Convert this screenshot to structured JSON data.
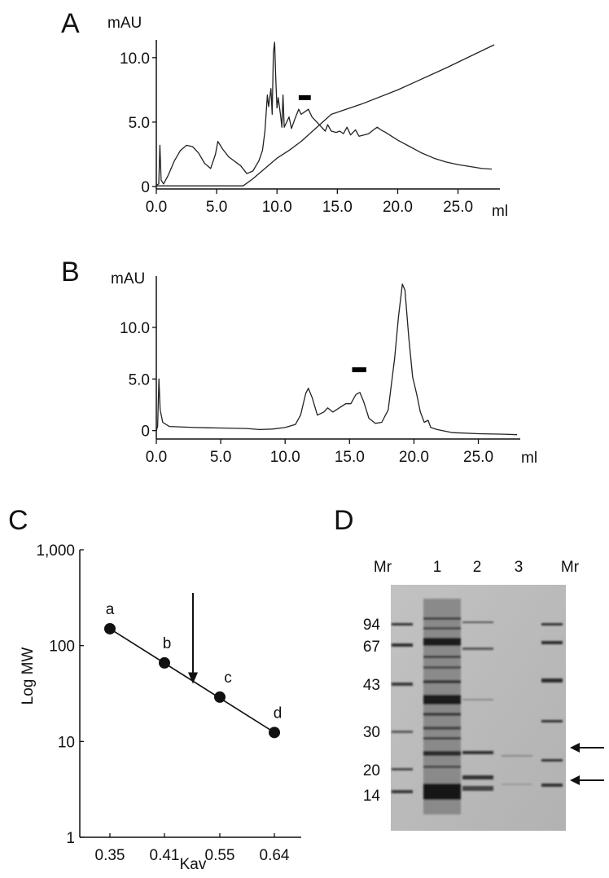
{
  "colors": {
    "ink": "#111111",
    "gel_bg": "#b9b9b9",
    "band": "#2a2a2a"
  },
  "chart_data": [
    {
      "panel": "A",
      "type": "line",
      "ylabel": "mAU",
      "xlabel": "ml",
      "xlim": [
        0,
        28.2
      ],
      "ylim": [
        0,
        11
      ],
      "x_ticks": [
        0,
        5,
        10,
        15,
        20,
        25
      ],
      "x_tick_labels": [
        "0.0",
        "5.0",
        "10.0",
        "15.0",
        "20.0",
        "25.0"
      ],
      "y_ticks": [
        0,
        5,
        10
      ],
      "y_tick_labels": [
        "0",
        "5.0",
        "10.0"
      ],
      "fraction_marker_x": [
        11.8,
        12.8
      ],
      "fraction_marker_y": 6.9,
      "series": [
        {
          "name": "absorbance",
          "points": [
            [
              0,
              0.1
            ],
            [
              0.2,
              0.2
            ],
            [
              0.3,
              3.2
            ],
            [
              0.4,
              0.5
            ],
            [
              0.6,
              0.2
            ],
            [
              1,
              0.9
            ],
            [
              1.5,
              2
            ],
            [
              2,
              2.8
            ],
            [
              2.5,
              3.2
            ],
            [
              3,
              3.1
            ],
            [
              3.5,
              2.6
            ],
            [
              4,
              1.8
            ],
            [
              4.5,
              1.4
            ],
            [
              4.9,
              2.5
            ],
            [
              5.1,
              3.5
            ],
            [
              5.5,
              2.9
            ],
            [
              6,
              2.3
            ],
            [
              7,
              1.6
            ],
            [
              7.5,
              1.0
            ],
            [
              8,
              1.2
            ],
            [
              8.5,
              2
            ],
            [
              8.8,
              2.8
            ],
            [
              9.0,
              4.3
            ],
            [
              9.2,
              7.1
            ],
            [
              9.3,
              6.2
            ],
            [
              9.5,
              7.6
            ],
            [
              9.6,
              5.6
            ],
            [
              9.7,
              10.4
            ],
            [
              9.8,
              11.2
            ],
            [
              9.9,
              8.4
            ],
            [
              10.0,
              6.1
            ],
            [
              10.1,
              6.9
            ],
            [
              10.3,
              5.5
            ],
            [
              10.4,
              4.6
            ],
            [
              10.5,
              7.1
            ],
            [
              10.6,
              4.6
            ],
            [
              10.8,
              5.0
            ],
            [
              11.0,
              5.4
            ],
            [
              11.2,
              4.5
            ],
            [
              11.5,
              5.3
            ],
            [
              11.8,
              6.0
            ],
            [
              12.0,
              5.6
            ],
            [
              12.3,
              5.8
            ],
            [
              12.6,
              6.0
            ],
            [
              12.9,
              5.4
            ],
            [
              13.3,
              5.0
            ],
            [
              13.6,
              4.7
            ],
            [
              14.0,
              4.3
            ],
            [
              14.2,
              4.8
            ],
            [
              14.5,
              4.3
            ],
            [
              14.9,
              4.2
            ],
            [
              15.2,
              4.3
            ],
            [
              15.5,
              4.1
            ],
            [
              15.8,
              4.6
            ],
            [
              16.1,
              4.0
            ],
            [
              16.5,
              4.4
            ],
            [
              16.8,
              3.9
            ],
            [
              17.2,
              4.0
            ],
            [
              17.6,
              4.1
            ],
            [
              18.0,
              4.4
            ],
            [
              18.3,
              4.6
            ],
            [
              18.6,
              4.4
            ],
            [
              19,
              4.2
            ],
            [
              20,
              3.6
            ],
            [
              21,
              3.1
            ],
            [
              22,
              2.6
            ],
            [
              23,
              2.2
            ],
            [
              24,
              1.9
            ],
            [
              25,
              1.7
            ],
            [
              26,
              1.55
            ],
            [
              27,
              1.4
            ],
            [
              27.8,
              1.35
            ]
          ]
        },
        {
          "name": "gradient",
          "points": [
            [
              0,
              0.05
            ],
            [
              7.2,
              0.05
            ],
            [
              8.0,
              0.6
            ],
            [
              9.0,
              1.4
            ],
            [
              10.0,
              2.2
            ],
            [
              11.0,
              2.8
            ],
            [
              12.0,
              3.5
            ],
            [
              14.5,
              5.6
            ],
            [
              17.0,
              6.4
            ],
            [
              20.0,
              7.5
            ],
            [
              24.0,
              9.2
            ],
            [
              28.0,
              11.0
            ]
          ]
        }
      ]
    },
    {
      "panel": "B",
      "type": "line",
      "ylabel": "mAU",
      "xlabel": "ml",
      "xlim": [
        0,
        28
      ],
      "ylim": [
        -0.5,
        14.5
      ],
      "x_ticks": [
        0,
        5,
        10,
        15,
        20,
        25
      ],
      "x_tick_labels": [
        "0.0",
        "5.0",
        "10.0",
        "15.0",
        "20.0",
        "25.0"
      ],
      "y_ticks": [
        0,
        5,
        10
      ],
      "y_tick_labels": [
        "0",
        "5.0",
        "10.0"
      ],
      "fraction_marker_x": [
        15.2,
        16.3
      ],
      "fraction_marker_y": 5.9,
      "series": [
        {
          "name": "absorbance",
          "points": [
            [
              0,
              0
            ],
            [
              0.1,
              0.4
            ],
            [
              0.2,
              5.0
            ],
            [
              0.3,
              2.0
            ],
            [
              0.5,
              0.8
            ],
            [
              1,
              0.4
            ],
            [
              3,
              0.3
            ],
            [
              5,
              0.25
            ],
            [
              7,
              0.2
            ],
            [
              8,
              0.1
            ],
            [
              9,
              0.15
            ],
            [
              10,
              0.3
            ],
            [
              10.8,
              0.6
            ],
            [
              11.2,
              1.5
            ],
            [
              11.6,
              3.6
            ],
            [
              11.8,
              4.1
            ],
            [
              12.1,
              3.2
            ],
            [
              12.5,
              1.5
            ],
            [
              13.0,
              1.8
            ],
            [
              13.3,
              2.2
            ],
            [
              13.7,
              1.8
            ],
            [
              14.2,
              2.2
            ],
            [
              14.7,
              2.6
            ],
            [
              15.1,
              2.6
            ],
            [
              15.5,
              3.5
            ],
            [
              15.8,
              3.7
            ],
            [
              16.1,
              2.8
            ],
            [
              16.5,
              1.2
            ],
            [
              17.0,
              0.7
            ],
            [
              17.5,
              0.8
            ],
            [
              18.0,
              2.0
            ],
            [
              18.5,
              7.0
            ],
            [
              18.8,
              11.0
            ],
            [
              19.1,
              14.2
            ],
            [
              19.3,
              13.6
            ],
            [
              19.6,
              9.0
            ],
            [
              19.9,
              5.2
            ],
            [
              20.2,
              3.6
            ],
            [
              20.5,
              1.8
            ],
            [
              20.8,
              0.8
            ],
            [
              21.1,
              1.0
            ],
            [
              21.3,
              0.3
            ],
            [
              21.8,
              0.1
            ],
            [
              23,
              -0.2
            ],
            [
              25,
              -0.3
            ],
            [
              27,
              -0.35
            ],
            [
              28,
              -0.4
            ]
          ]
        }
      ]
    },
    {
      "panel": "C",
      "type": "scatter",
      "ylabel": "Log MW",
      "xlabel": "Kav",
      "yscale": "log",
      "ylim": [
        1,
        1000
      ],
      "y_ticks": [
        1,
        10,
        100,
        1000
      ],
      "y_tick_labels": [
        "1",
        "10",
        "100",
        "1,000"
      ],
      "x_tick_labels": [
        "0.35",
        "0.41",
        "0.55",
        "0.64"
      ],
      "points": [
        {
          "label": "a",
          "kav": "0.35",
          "mw": 150
        },
        {
          "label": "b",
          "kav": "0.41",
          "mw": 66
        },
        {
          "label": "c",
          "kav": "0.55",
          "mw": 29
        },
        {
          "label": "d",
          "kav": "0.64",
          "mw": 12.4
        }
      ],
      "arrow_mw": 45
    }
  ],
  "panels": {
    "A": {
      "letter": "A"
    },
    "B": {
      "letter": "B"
    },
    "C": {
      "letter": "C"
    },
    "D": {
      "letter": "D",
      "lane_labels": [
        "Mr",
        "1",
        "2",
        "3",
        "Mr"
      ],
      "mw_labels": [
        "94",
        "67",
        "43",
        "30",
        "20",
        "14"
      ]
    }
  }
}
